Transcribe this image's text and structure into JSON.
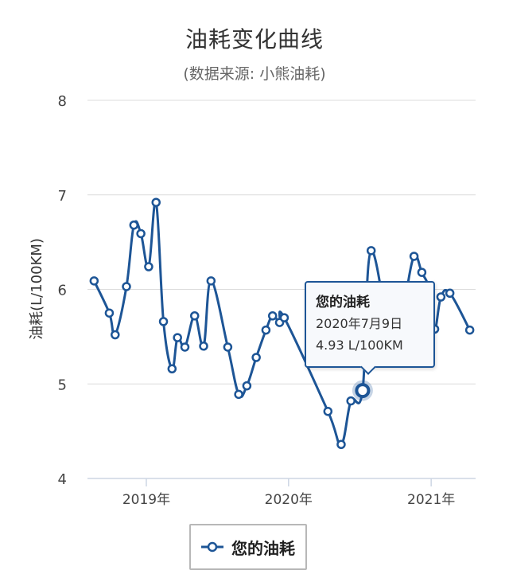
{
  "chart_data": {
    "type": "line",
    "title": "油耗变化曲线",
    "subtitle": "(数据来源: 小熊油耗)",
    "ylabel": "油耗(L/100KM)",
    "ylim": [
      4,
      8
    ],
    "yticks": [
      "4",
      "5",
      "6",
      "7",
      "8"
    ],
    "xlim": [
      "2018-08-03",
      "2021-04-25"
    ],
    "xticks": [
      {
        "label": "2019年",
        "date": "2019-01-01"
      },
      {
        "label": "2020年",
        "date": "2020-01-01"
      },
      {
        "label": "2021年",
        "date": "2021-01-01"
      }
    ],
    "grid": true,
    "series": [
      {
        "name": "您的油耗",
        "color": "#1d5596",
        "points": [
          {
            "x": "2018-08-20",
            "y": 6.09
          },
          {
            "x": "2018-09-28",
            "y": 5.75
          },
          {
            "x": "2018-10-13",
            "y": 5.52
          },
          {
            "x": "2018-11-11",
            "y": 6.03
          },
          {
            "x": "2018-11-30",
            "y": 6.68
          },
          {
            "x": "2018-12-18",
            "y": 6.59
          },
          {
            "x": "2019-01-07",
            "y": 6.24
          },
          {
            "x": "2019-01-26",
            "y": 6.92
          },
          {
            "x": "2019-02-14",
            "y": 5.66
          },
          {
            "x": "2019-03-08",
            "y": 5.16
          },
          {
            "x": "2019-03-22",
            "y": 5.49
          },
          {
            "x": "2019-04-10",
            "y": 5.39
          },
          {
            "x": "2019-05-05",
            "y": 5.72
          },
          {
            "x": "2019-05-28",
            "y": 5.4
          },
          {
            "x": "2019-06-16",
            "y": 6.09
          },
          {
            "x": "2019-07-29",
            "y": 5.39
          },
          {
            "x": "2019-08-26",
            "y": 4.89
          },
          {
            "x": "2019-09-16",
            "y": 4.98
          },
          {
            "x": "2019-10-10",
            "y": 5.28
          },
          {
            "x": "2019-11-04",
            "y": 5.57
          },
          {
            "x": "2019-11-21",
            "y": 5.72
          },
          {
            "x": "2019-12-09",
            "y": 5.65
          },
          {
            "x": "2019-12-21",
            "y": 5.7
          },
          {
            "x": "2020-04-11",
            "y": 4.71
          },
          {
            "x": "2020-05-15",
            "y": 4.36
          },
          {
            "x": "2020-06-09",
            "y": 4.82
          },
          {
            "x": "2020-07-09",
            "y": 4.93
          },
          {
            "x": "2020-07-31",
            "y": 6.41
          },
          {
            "x": "2020-09-29",
            "y": 5.24
          },
          {
            "x": "2020-10-24",
            "y": 5.84
          },
          {
            "x": "2020-11-18",
            "y": 6.35
          },
          {
            "x": "2020-12-08",
            "y": 6.18
          },
          {
            "x": "2020-12-27",
            "y": 6.0
          },
          {
            "x": "2021-01-10",
            "y": 5.58
          },
          {
            "x": "2021-01-26",
            "y": 5.92
          },
          {
            "x": "2021-02-18",
            "y": 5.96
          },
          {
            "x": "2021-04-10",
            "y": 5.57
          }
        ]
      }
    ]
  },
  "legend": {
    "label": "您的油耗"
  },
  "tooltip": {
    "name": "您的油耗",
    "date": "2020年7月9日",
    "value": "4.93 L/100KM",
    "active_date": "2020-07-09"
  }
}
